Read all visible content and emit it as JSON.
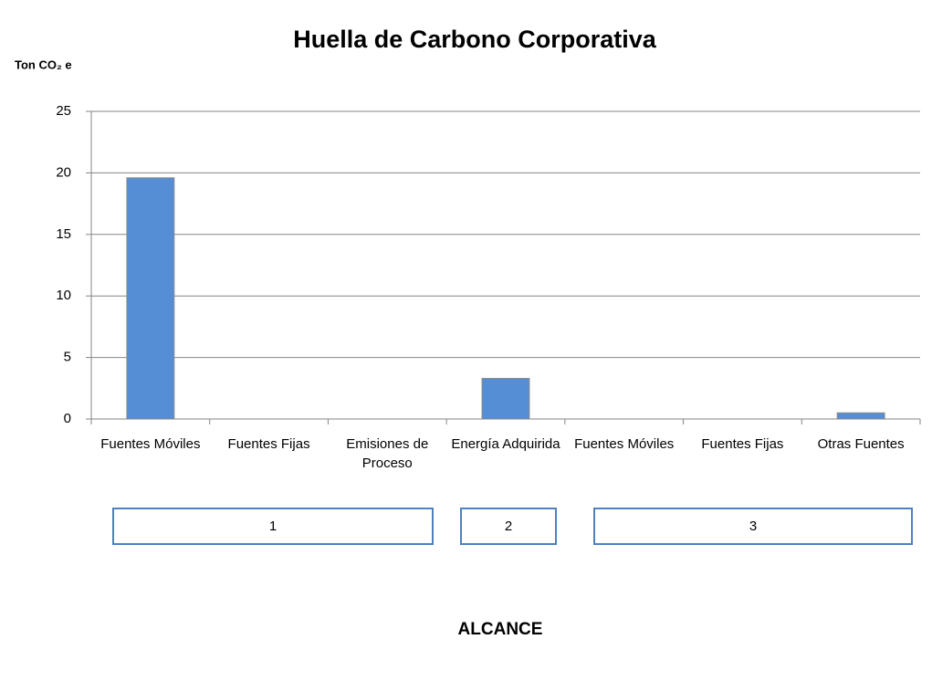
{
  "chart_data": {
    "type": "bar",
    "title": "Huella de Carbono Corporativa",
    "y_label": "Ton CO₂ e",
    "x_label": "ALCANCE",
    "categories": [
      "Fuentes Móviles",
      "Fuentes Fijas",
      "Emisiones de Proceso",
      "Energía Adquirida",
      "Fuentes Móviles",
      "Fuentes Fijas",
      "Otras Fuentes"
    ],
    "values": [
      19.6,
      0,
      0,
      3.3,
      0,
      0,
      0.5
    ],
    "groups": [
      "1",
      "2",
      "3"
    ],
    "color": "#558ed5",
    "ylim": [
      0,
      25
    ],
    "yticks": [
      0,
      5,
      10,
      15,
      20,
      25
    ],
    "grid": true
  }
}
